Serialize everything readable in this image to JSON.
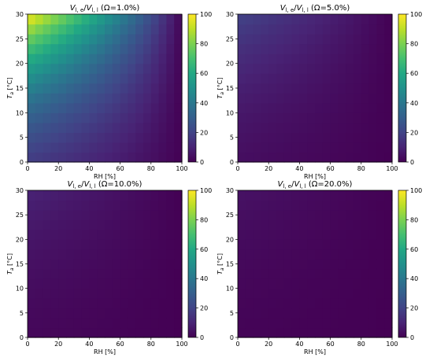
{
  "chart_data": [
    {
      "type": "heatmap",
      "title": {
        "v1": "V",
        "s1": "l, e",
        "slash": "/",
        "v2": "V",
        "s2": "l, l",
        "rest": " (Ω=1.0%)"
      },
      "xlabel": "RH [%]",
      "ylabel": {
        "v": "T",
        "s": "a",
        "rest": " [°C]"
      },
      "xlim": [
        0,
        100
      ],
      "ylim": [
        0,
        30
      ],
      "xticks": [
        "0",
        "20",
        "40",
        "60",
        "80",
        "100"
      ],
      "yticks": [
        "0",
        "5",
        "10",
        "15",
        "20",
        "25",
        "30"
      ],
      "colorbar": {
        "min": 0,
        "max": 100,
        "ticks": [
          "0",
          "20",
          "40",
          "60",
          "80",
          "100"
        ]
      },
      "omega": 1.0,
      "grid": {
        "rh_cells": 20,
        "t_cells": 15,
        "rh_step": 5,
        "t_step": 2
      },
      "colormap": "viridis",
      "shape": {
        "k1": 8,
        "k2": 0.0,
        "k3": 1.5
      }
    },
    {
      "type": "heatmap",
      "title": {
        "v1": "V",
        "s1": "l, e",
        "slash": "/",
        "v2": "V",
        "s2": "l, l",
        "rest": " (Ω=5.0%)"
      },
      "xlabel": "RH [%]",
      "ylabel": {
        "v": "T",
        "s": "a",
        "rest": " [°C]"
      },
      "xlim": [
        0,
        100
      ],
      "ylim": [
        0,
        30
      ],
      "xticks": [
        "0",
        "20",
        "40",
        "60",
        "80",
        "100"
      ],
      "yticks": [
        "0",
        "5",
        "10",
        "15",
        "20",
        "25",
        "30"
      ],
      "colorbar": {
        "min": 0,
        "max": 100,
        "ticks": [
          "0",
          "20",
          "40",
          "60",
          "80",
          "100"
        ]
      },
      "omega": 5.0,
      "grid": {
        "rh_cells": 20,
        "t_cells": 15,
        "rh_step": 5,
        "t_step": 2
      },
      "colormap": "viridis",
      "shape": {
        "k1": 8,
        "k2": 0.0,
        "k3": 1.5
      }
    },
    {
      "type": "heatmap",
      "title": {
        "v1": "V",
        "s1": "l, e",
        "slash": "/",
        "v2": "V",
        "s2": "l, l",
        "rest": " (Ω=10.0%)"
      },
      "xlabel": "RH [%]",
      "ylabel": {
        "v": "T",
        "s": "a",
        "rest": " [°C]"
      },
      "xlim": [
        0,
        100
      ],
      "ylim": [
        0,
        30
      ],
      "xticks": [
        "0",
        "20",
        "40",
        "60",
        "80",
        "100"
      ],
      "yticks": [
        "0",
        "5",
        "10",
        "15",
        "20",
        "25",
        "30"
      ],
      "colorbar": {
        "min": 0,
        "max": 100,
        "ticks": [
          "0",
          "20",
          "40",
          "60",
          "80",
          "100"
        ]
      },
      "omega": 10.0,
      "grid": {
        "rh_cells": 20,
        "t_cells": 15,
        "rh_step": 5,
        "t_step": 2
      },
      "colormap": "viridis",
      "shape": {
        "k1": 8,
        "k2": 0.0,
        "k3": 1.5
      }
    },
    {
      "type": "heatmap",
      "title": {
        "v1": "V",
        "s1": "l, e",
        "slash": "/",
        "v2": "V",
        "s2": "l, l",
        "rest": " (Ω=20.0%)"
      },
      "xlabel": "RH [%]",
      "ylabel": {
        "v": "T",
        "s": "a",
        "rest": " [°C]"
      },
      "xlim": [
        0,
        100
      ],
      "ylim": [
        0,
        30
      ],
      "xticks": [
        "0",
        "20",
        "40",
        "60",
        "80",
        "100"
      ],
      "yticks": [
        "0",
        "5",
        "10",
        "15",
        "20",
        "25",
        "30"
      ],
      "colorbar": {
        "min": 0,
        "max": 100,
        "ticks": [
          "0",
          "20",
          "40",
          "60",
          "80",
          "100"
        ]
      },
      "omega": 20.0,
      "grid": {
        "rh_cells": 20,
        "t_cells": 15,
        "rh_step": 5,
        "t_step": 2
      },
      "colormap": "viridis",
      "shape": {
        "k1": 8,
        "k2": 0.0,
        "k3": 1.5
      }
    }
  ]
}
